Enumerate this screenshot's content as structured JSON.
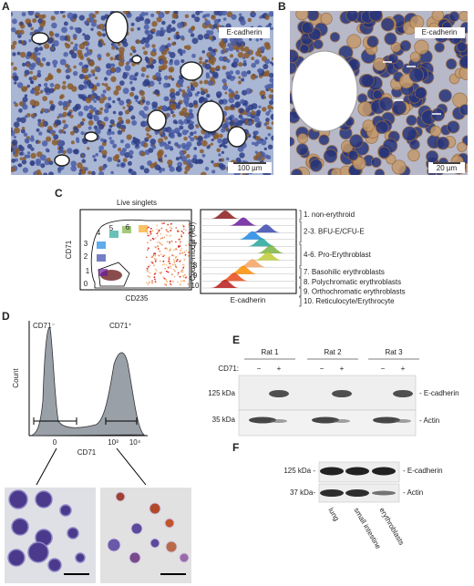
{
  "panels": {
    "a": {
      "label": "A",
      "stain": "E-cadherin",
      "scale_bar": "100 µm"
    },
    "b": {
      "label": "B",
      "stain": "E-cadherin",
      "scale_bar": "20 µm"
    },
    "c": {
      "label": "C",
      "gating_title": "Live singlets",
      "y_axis": "CD71",
      "x_axis": "CD235",
      "gates": [
        "0",
        "1",
        "2",
        "3",
        "4",
        "5",
        "6",
        "7",
        "8",
        "9",
        "10"
      ],
      "histogram_y_axis": "Count-modal (AU)",
      "histogram_x_axis": "E-cadherin",
      "populations": [
        "1. non-erythroid",
        "2-3. BFU-E/CFU-E",
        "4-6. Pro-Erythroblast",
        "7. Basohilic erythroblasts",
        "8. Polychromatic erythroblasts",
        "9. Orthochromatic erythroblasts",
        "10. Reticulocyte/Erythrocyte"
      ]
    },
    "d": {
      "label": "D",
      "y_axis": "Count",
      "x_axis": "CD71",
      "ticks": [
        "0",
        "10³",
        "10⁴"
      ],
      "gates": [
        "CD71⁻",
        "CD71⁺"
      ]
    },
    "e": {
      "label": "E",
      "groups": [
        "Rat 1",
        "Rat 2",
        "Rat 3"
      ],
      "row_label": "CD71:",
      "signs": [
        "−",
        "+"
      ],
      "markers": [
        "125 kDa",
        "35 kDa"
      ],
      "bands": [
        "- E-cadherin",
        "- Actin"
      ]
    },
    "f": {
      "label": "F",
      "markers": [
        "125 kDa -",
        "37 kDa-"
      ],
      "bands": [
        "- E-cadherin",
        "- Actin"
      ],
      "lanes": [
        "lung",
        "small intestine",
        "erythroblasts"
      ]
    }
  }
}
